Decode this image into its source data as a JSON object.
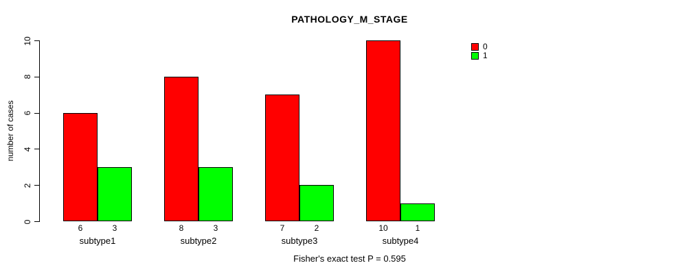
{
  "chart_data": {
    "type": "bar",
    "title": "PATHOLOGY_M_STAGE",
    "ylabel": "number of cases",
    "xlabel": "",
    "subtitle": "Fisher's exact test P = 0.595",
    "categories": [
      "subtype1",
      "subtype2",
      "subtype3",
      "subtype4"
    ],
    "series": [
      {
        "name": "0",
        "color": "#FF0000",
        "values": [
          6,
          8,
          7,
          10
        ]
      },
      {
        "name": "1",
        "color": "#00FF00",
        "values": [
          3,
          3,
          2,
          1
        ]
      }
    ],
    "bar_value_labels": [
      [
        "6",
        "3"
      ],
      [
        "8",
        "3"
      ],
      [
        "7",
        "2"
      ],
      [
        "10",
        "1"
      ]
    ],
    "yticks": [
      "0",
      "2",
      "4",
      "6",
      "8",
      "10"
    ],
    "ylim": [
      0,
      10
    ],
    "grid": false,
    "legend_position": "top-right"
  },
  "colors": {
    "background": "#FFFFFF",
    "text": "#000000",
    "axis": "#000000",
    "bar_border": "#000000",
    "series_0": "#FF0000",
    "series_1": "#00FF00"
  }
}
